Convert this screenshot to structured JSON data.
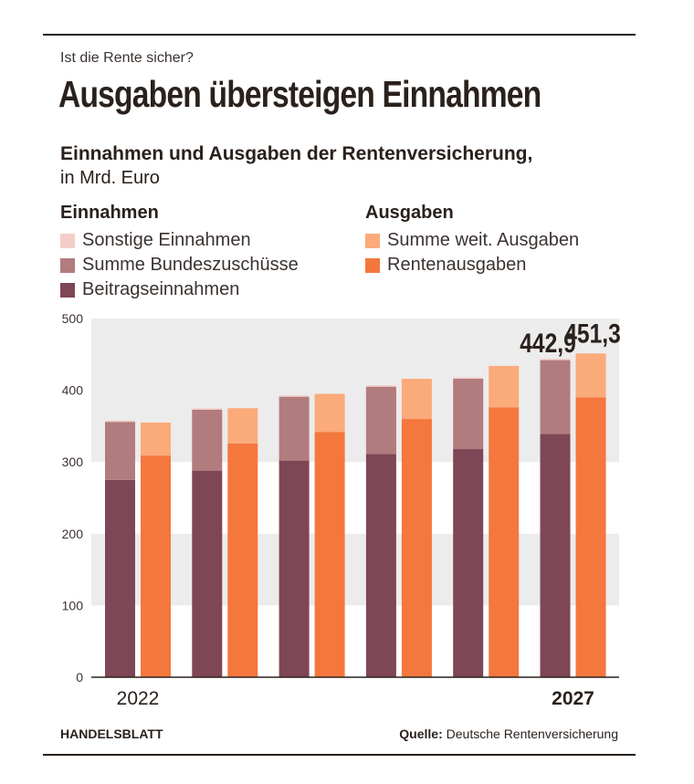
{
  "kicker": "Ist die Rente sicher?",
  "headline": "Ausgaben übersteigen Einnahmen",
  "subtitle": "Einnahmen und Ausgaben der Rentenversicherung,",
  "unit": "in Mrd. Euro",
  "legend": {
    "income_title": "Einnahmen",
    "expense_title": "Ausgaben",
    "income_items": [
      {
        "label": "Sonstige Einnahmen",
        "color": "#f4cdc8"
      },
      {
        "label": "Summe Bundeszuschüsse",
        "color": "#b27b7e"
      },
      {
        "label": "Beitragseinnahmen",
        "color": "#7f4655"
      }
    ],
    "expense_items": [
      {
        "label": "Summe weit. Ausgaben",
        "color": "#fbaa7a"
      },
      {
        "label": "Rentenausgaben",
        "color": "#f4773d"
      }
    ]
  },
  "footer": {
    "brand": "HANDELSBLATT",
    "source_label": "Quelle:",
    "source_text": "Deutsche Rentenversicherung"
  },
  "chart_data": {
    "type": "bar",
    "stacked": true,
    "x_tick_labels": [
      "2022",
      "",
      "",
      "",
      "",
      "2027"
    ],
    "y_ticks": [
      0,
      100,
      200,
      300,
      400,
      500
    ],
    "ylim": [
      0,
      500
    ],
    "grid": "alternating horizontal bands",
    "groups": [
      {
        "name": "Einnahmen",
        "series": [
          {
            "name": "Beitragseinnahmen",
            "color": "#7f4655",
            "values": [
              275,
              288,
              302,
              311,
              318,
              339
            ]
          },
          {
            "name": "Summe Bundeszuschüsse",
            "color": "#b27b7e",
            "values": [
              81,
              85,
              89,
              94,
              98,
              103
            ]
          },
          {
            "name": "Sonstige Einnahmen",
            "color": "#f4cdc8",
            "values": [
              0,
              0,
              0,
              0,
              0,
              0
            ]
          }
        ],
        "totals": [
          356,
          373,
          391,
          405,
          416,
          442.9
        ]
      },
      {
        "name": "Ausgaben",
        "series": [
          {
            "name": "Rentenausgaben",
            "color": "#f4773d",
            "values": [
              309,
              326,
              342,
              360,
              376,
              390
            ]
          },
          {
            "name": "Summe weit. Ausgaben",
            "color": "#fbaa7a",
            "values": [
              46,
              49,
              53,
              56,
              58,
              61.3
            ]
          }
        ],
        "totals": [
          355,
          375,
          395,
          416,
          434,
          451.3
        ]
      }
    ],
    "value_labels": [
      {
        "group": 0,
        "index": 5,
        "text": "442,9"
      },
      {
        "group": 1,
        "index": 5,
        "text": "451,3"
      }
    ]
  }
}
